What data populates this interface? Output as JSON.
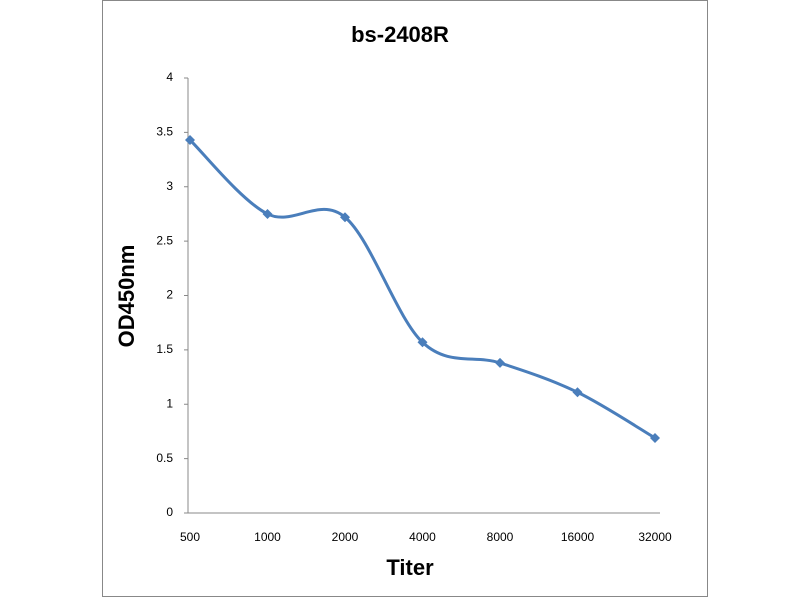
{
  "chart_data": {
    "type": "line",
    "title": "bs-2408R",
    "x_label": "Titer",
    "y_label": "OD450nm",
    "categories": [
      "500",
      "1000",
      "2000",
      "4000",
      "8000",
      "16000",
      "32000"
    ],
    "series": [
      {
        "name": "bs-2408R",
        "color": "#4a7ebb",
        "values": [
          3.43,
          2.75,
          2.72,
          1.57,
          1.38,
          1.11,
          0.69
        ]
      }
    ],
    "ylim": [
      0,
      4
    ],
    "yticks": [
      0,
      0.5,
      1,
      1.5,
      2,
      2.5,
      3,
      3.5,
      4
    ],
    "smooth": true
  }
}
